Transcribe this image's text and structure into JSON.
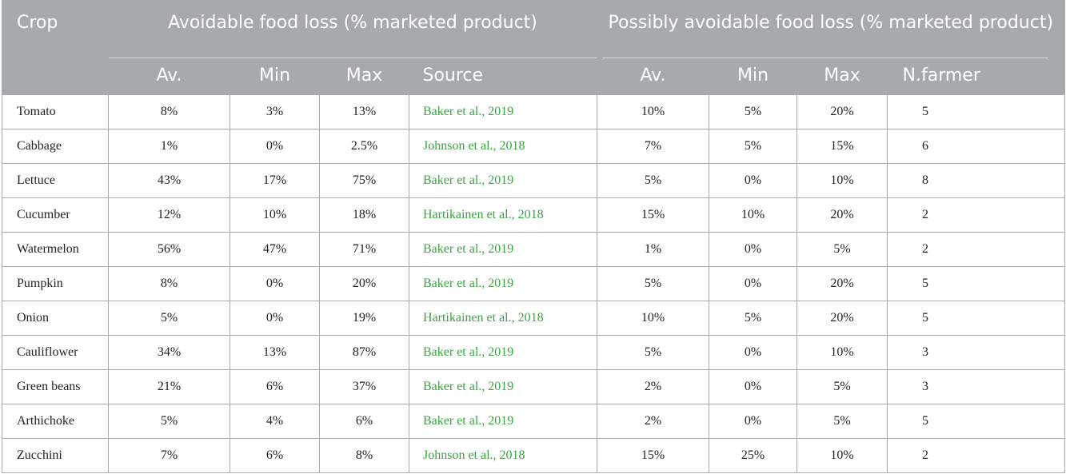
{
  "header": {
    "group1": "Avoidable food loss (% marketed product)",
    "group2": "Possibly avoidable food loss (% marketed product)",
    "crop": "Crop",
    "av1": "Av.",
    "min1": "Min",
    "max1": "Max",
    "source": "Source",
    "av2": "Av.",
    "min2": "Min",
    "max2": "Max",
    "nfarmer": "N.farmer"
  },
  "rows": [
    {
      "crop": "Tomato",
      "av": "8%",
      "min": "3%",
      "max": "13%",
      "source": "Baker et al., 2019",
      "pav": "10%",
      "pmin": "5%",
      "pmax": "20%",
      "nf": "5"
    },
    {
      "crop": "Cabbage",
      "av": "1%",
      "min": "0%",
      "max": "2.5%",
      "source": "Johnson et al., 2018",
      "pav": "7%",
      "pmin": "5%",
      "pmax": "15%",
      "nf": "6"
    },
    {
      "crop": "Lettuce",
      "av": "43%",
      "min": "17%",
      "max": "75%",
      "source": "Baker et al., 2019",
      "pav": "5%",
      "pmin": "0%",
      "pmax": "10%",
      "nf": "8"
    },
    {
      "crop": "Cucumber",
      "av": "12%",
      "min": "10%",
      "max": "18%",
      "source": "Hartikainen et al., 2018",
      "pav": "15%",
      "pmin": "10%",
      "pmax": "20%",
      "nf": "2"
    },
    {
      "crop": "Watermelon",
      "av": "56%",
      "min": "47%",
      "max": "71%",
      "source": "Baker et al., 2019",
      "pav": "1%",
      "pmin": "0%",
      "pmax": "5%",
      "nf": "2"
    },
    {
      "crop": "Pumpkin",
      "av": "8%",
      "min": "0%",
      "max": "20%",
      "source": "Baker et al., 2019",
      "pav": "5%",
      "pmin": "0%",
      "pmax": "20%",
      "nf": "5"
    },
    {
      "crop": "Onion",
      "av": "5%",
      "min": "0%",
      "max": "19%",
      "source": "Hartikainen et al., 2018",
      "pav": "10%",
      "pmin": "5%",
      "pmax": "20%",
      "nf": "5"
    },
    {
      "crop": "Cauliflower",
      "av": "34%",
      "min": "13%",
      "max": "87%",
      "source": "Baker et al., 2019",
      "pav": "5%",
      "pmin": "0%",
      "pmax": "10%",
      "nf": "3"
    },
    {
      "crop": "Green beans",
      "av": "21%",
      "min": "6%",
      "max": "37%",
      "source": "Baker et al., 2019",
      "pav": "2%",
      "pmin": "0%",
      "pmax": "5%",
      "nf": "3"
    },
    {
      "crop": "Arthichoke",
      "av": "5%",
      "min": "4%",
      "max": "6%",
      "source": "Baker et al., 2019",
      "pav": "2%",
      "pmin": "0%",
      "pmax": "5%",
      "nf": "5"
    },
    {
      "crop": "Zucchini",
      "av": "7%",
      "min": "6%",
      "max": "8%",
      "source": "Johnson et al., 2018",
      "pav": "15%",
      "pmin": "25%",
      "pmax": "10%",
      "nf": "2"
    }
  ],
  "colors": {
    "header_bg": "#a7a9ac",
    "header_text": "#ffffff",
    "source_link": "#3aa540",
    "border": "#a7a9ac"
  }
}
